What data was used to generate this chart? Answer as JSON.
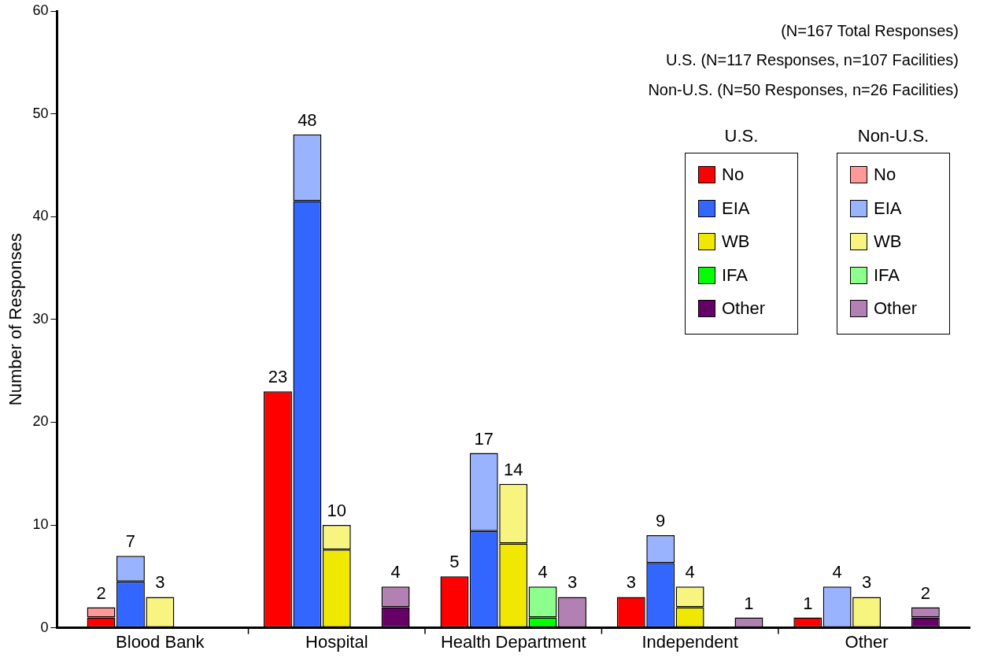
{
  "chart_data": {
    "type": "bar",
    "stacked": true,
    "ylabel": "Number of Responses",
    "categories": [
      null,
      null,
      null,
      "Blood Bank",
      null,
      null,
      null,
      null,
      null,
      "Hospital",
      null,
      null,
      null,
      null,
      null,
      "Health Department",
      null,
      null,
      null,
      null,
      null,
      "Independent",
      null,
      null,
      null,
      null,
      null,
      "Other",
      null,
      null,
      null
    ],
    "ylim": [
      0,
      60
    ],
    "yticks": [
      0,
      10,
      20,
      30,
      40,
      50,
      60
    ],
    "grid": false,
    "legend": "top right",
    "legend_title": [
      "U.S.",
      "Non-U.S."
    ],
    "annotations": [
      "(N=167 Total Responses)",
      "U.S. (N=117 Responses, n=107 Facilities)",
      "Non-U.S. (N=50 Responses, n=26 Facilities)"
    ],
    "series": [
      {
        "name": "No",
        "color": "#ff0000",
        "values": [
          null,
          1,
          null,
          null,
          null,
          null,
          null,
          23,
          null,
          null,
          null,
          null,
          null,
          5,
          null,
          null,
          null,
          null,
          null,
          3,
          null,
          null,
          null,
          null,
          null,
          1,
          null,
          null,
          null,
          null,
          null
        ]
      },
      {
        "name": "EIA",
        "color": "#3366ff",
        "values": [
          null,
          null,
          4.5,
          null,
          null,
          null,
          null,
          null,
          41.5,
          null,
          null,
          null,
          null,
          null,
          9.4,
          null,
          null,
          null,
          null,
          null,
          6.3,
          null,
          null,
          null,
          null,
          null,
          null,
          null,
          null,
          null,
          null
        ]
      },
      {
        "name": "WB",
        "color": "#f0e800",
        "values": [
          null,
          null,
          null,
          null,
          null,
          null,
          null,
          null,
          null,
          7.6,
          null,
          null,
          null,
          null,
          null,
          8.2,
          null,
          null,
          null,
          null,
          null,
          2,
          null,
          null,
          null,
          null,
          null,
          null,
          null,
          null,
          null
        ]
      },
      {
        "name": "IFA",
        "color": "#00ff00",
        "values": [
          null,
          null,
          null,
          null,
          null,
          null,
          null,
          null,
          null,
          null,
          null,
          null,
          null,
          null,
          null,
          null,
          1,
          null,
          null,
          null,
          null,
          null,
          null,
          null,
          null,
          null,
          null,
          null,
          null,
          null,
          null
        ]
      },
      {
        "name": "Other",
        "color": "#660066",
        "values": [
          null,
          null,
          null,
          null,
          null,
          null,
          null,
          null,
          null,
          null,
          null,
          2,
          null,
          null,
          null,
          null,
          null,
          null,
          null,
          null,
          null,
          null,
          null,
          null,
          null,
          null,
          null,
          null,
          null,
          1,
          null
        ]
      },
      {
        "name": "No",
        "color": "#ff9999",
        "values": [
          null,
          1,
          null,
          null,
          null,
          null,
          null,
          null,
          null,
          null,
          null,
          null,
          null,
          null,
          null,
          null,
          null,
          null,
          null,
          null,
          null,
          null,
          null,
          null,
          null,
          null,
          null,
          null,
          null,
          null,
          null
        ]
      },
      {
        "name": "EIA",
        "color": "#99b3ff",
        "values": [
          null,
          null,
          2.5,
          null,
          null,
          null,
          null,
          null,
          6.5,
          null,
          null,
          null,
          null,
          null,
          7.6,
          null,
          null,
          null,
          null,
          null,
          2.7,
          null,
          null,
          null,
          null,
          null,
          4,
          null,
          null,
          null,
          null
        ]
      },
      {
        "name": "WB",
        "color": "#f8f480",
        "values": [
          null,
          null,
          null,
          3,
          null,
          null,
          null,
          null,
          null,
          2.4,
          null,
          null,
          null,
          null,
          null,
          5.8,
          null,
          null,
          null,
          null,
          null,
          2,
          null,
          null,
          null,
          null,
          null,
          3,
          null,
          null,
          null
        ]
      },
      {
        "name": "IFA",
        "color": "#8cff8c",
        "values": [
          null,
          null,
          null,
          null,
          null,
          null,
          null,
          null,
          null,
          null,
          null,
          null,
          null,
          null,
          null,
          null,
          3,
          null,
          null,
          null,
          null,
          null,
          null,
          null,
          null,
          null,
          null,
          null,
          null,
          null,
          null
        ]
      },
      {
        "name": "Other",
        "color": "#b380b3",
        "values": [
          null,
          null,
          null,
          null,
          null,
          null,
          null,
          null,
          null,
          null,
          null,
          2,
          null,
          null,
          null,
          null,
          null,
          3,
          null,
          null,
          null,
          null,
          null,
          1,
          null,
          null,
          null,
          null,
          null,
          1,
          null
        ]
      }
    ],
    "totals": [
      null,
      "2",
      "7",
      "3",
      null,
      null,
      null,
      "23",
      "48",
      "10",
      null,
      "4",
      null,
      "5",
      "17",
      "14",
      "4",
      "3",
      null,
      "3",
      "9",
      "4",
      null,
      "1",
      null,
      "1",
      "4",
      "3",
      null,
      "2",
      null
    ]
  }
}
